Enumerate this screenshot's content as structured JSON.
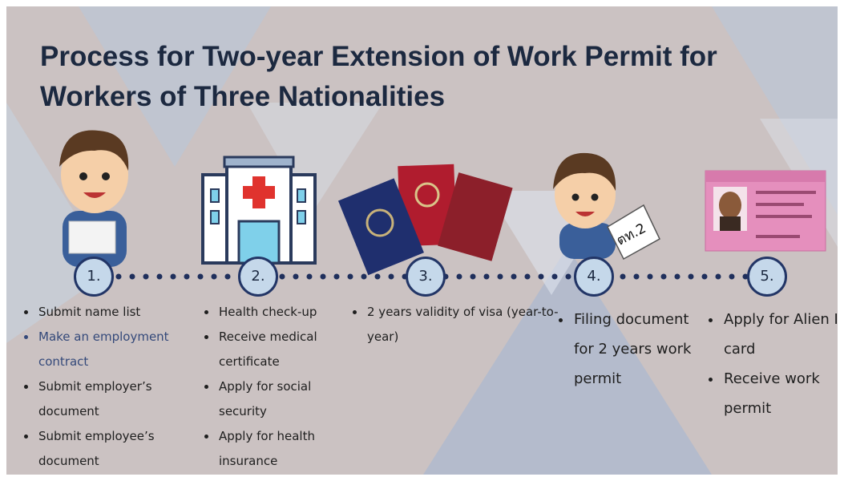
{
  "title": "Process for Two-year Extension of Work Permit for Workers of Three Nationalities",
  "document_icon_label": "ตท.2",
  "steps": [
    {
      "number": "1.",
      "bullets": [
        "Submit name list",
        "Make an employment contract",
        "Submit employer’s document",
        "Submit employee’s document"
      ]
    },
    {
      "number": "2.",
      "bullets": [
        "Health check-up",
        "Receive medical certificate",
        "Apply for social security",
        "Apply for health insurance"
      ]
    },
    {
      "number": "3.",
      "bullets": [
        "2 years validity of visa (year-to-year)"
      ]
    },
    {
      "number": "4.",
      "bullets": [
        "Filing document for 2 years work permit"
      ]
    },
    {
      "number": "5.",
      "bullets": [
        "Apply for Alien ID card",
        "Receive work permit"
      ]
    }
  ]
}
